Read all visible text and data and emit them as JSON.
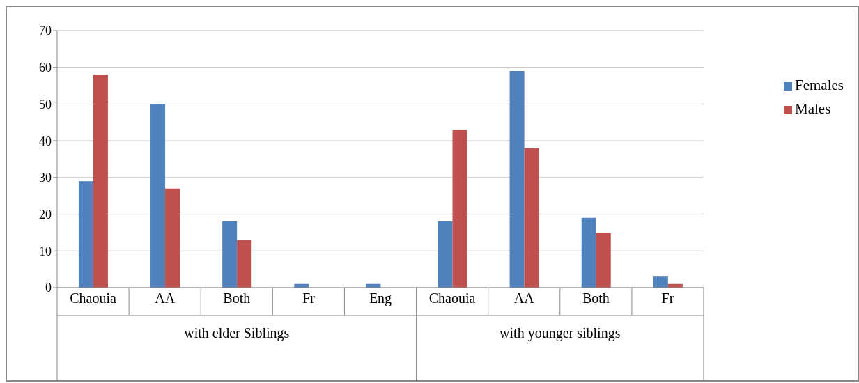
{
  "chart_data": {
    "type": "bar",
    "categories": [
      "Chaouia",
      "AA",
      "Both",
      "Fr",
      "Eng",
      "Chaouia",
      "AA",
      "Both",
      "Fr"
    ],
    "series": [
      {
        "name": "Females",
        "color": "#4f81bd",
        "values": [
          29,
          50,
          18,
          1,
          1,
          18,
          59,
          19,
          3
        ]
      },
      {
        "name": "Males",
        "color": "#c0504d",
        "values": [
          58,
          27,
          13,
          0,
          0,
          43,
          38,
          15,
          1
        ]
      }
    ],
    "annotations": [
      "with elder Siblings",
      "with younger siblings"
    ],
    "ylim": [
      0,
      70
    ],
    "yticks": [
      0,
      10,
      20,
      30,
      40,
      50,
      60,
      70
    ],
    "grid": "y",
    "legend": "right"
  }
}
